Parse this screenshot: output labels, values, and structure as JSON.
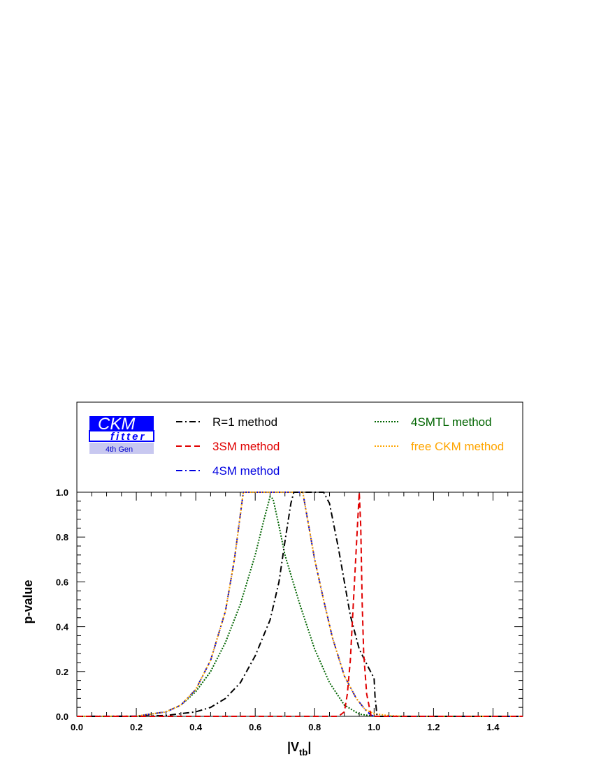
{
  "logo": {
    "main": "CKM",
    "sub": "fitter",
    "gen": "4th Gen"
  },
  "colors": {
    "r1": "#000000",
    "sm3": "#e00000",
    "sm4": "#0000e0",
    "tl4": "#006400",
    "free": "#ffa500",
    "logo_blue": "#0000ff",
    "logo_band": "#c8c8f0"
  },
  "chart_data": {
    "type": "line",
    "xlabel": "|V",
    "xlabel_sub": "tb",
    "xlabel_close": "|",
    "ylabel": "p-value",
    "xlim": [
      0.0,
      1.5
    ],
    "ylim": [
      0.0,
      1.0
    ],
    "x_ticks": [
      "0.0",
      "0.2",
      "0.4",
      "0.6",
      "0.8",
      "1.0",
      "1.2",
      "1.4"
    ],
    "y_ticks": [
      "0.0",
      "0.2",
      "0.4",
      "0.6",
      "0.8",
      "1.0"
    ],
    "grid": false,
    "legend_position": "top",
    "series": [
      {
        "name": "R=1 method",
        "color": "#000000",
        "dash": "dashdot",
        "points": [
          [
            0.0,
            0
          ],
          [
            0.2,
            0
          ],
          [
            0.3,
            0.004
          ],
          [
            0.4,
            0.02
          ],
          [
            0.45,
            0.04
          ],
          [
            0.5,
            0.08
          ],
          [
            0.55,
            0.15
          ],
          [
            0.6,
            0.27
          ],
          [
            0.65,
            0.43
          ],
          [
            0.68,
            0.6
          ],
          [
            0.7,
            0.78
          ],
          [
            0.72,
            0.95
          ],
          [
            0.73,
            1.0
          ],
          [
            0.83,
            1.0
          ],
          [
            0.85,
            0.95
          ],
          [
            0.88,
            0.75
          ],
          [
            0.9,
            0.6
          ],
          [
            0.92,
            0.45
          ],
          [
            0.95,
            0.3
          ],
          [
            0.98,
            0.22
          ],
          [
            1.0,
            0.17
          ],
          [
            1.003,
            0.09
          ],
          [
            1.01,
            0.0
          ],
          [
            1.5,
            0
          ]
        ]
      },
      {
        "name": "3SM method",
        "color": "#e00000",
        "dash": "dashed",
        "points": [
          [
            0.0,
            0
          ],
          [
            0.88,
            0
          ],
          [
            0.9,
            0.02
          ],
          [
            0.91,
            0.1
          ],
          [
            0.92,
            0.25
          ],
          [
            0.93,
            0.5
          ],
          [
            0.94,
            0.75
          ],
          [
            0.95,
            1.0
          ],
          [
            0.955,
            0.85
          ],
          [
            0.96,
            0.5
          ],
          [
            0.965,
            0.28
          ],
          [
            0.975,
            0.1
          ],
          [
            0.99,
            0.0
          ],
          [
            1.5,
            0
          ]
        ]
      },
      {
        "name": "4SM method",
        "color": "#0000e0",
        "dash": "dashdot",
        "points": [
          [
            0.0,
            0
          ],
          [
            0.2,
            0.001
          ],
          [
            0.3,
            0.02
          ],
          [
            0.35,
            0.05
          ],
          [
            0.4,
            0.12
          ],
          [
            0.45,
            0.25
          ],
          [
            0.5,
            0.47
          ],
          [
            0.53,
            0.7
          ],
          [
            0.55,
            0.9
          ],
          [
            0.56,
            1.0
          ],
          [
            0.76,
            1.0
          ],
          [
            0.78,
            0.85
          ],
          [
            0.8,
            0.7
          ],
          [
            0.83,
            0.52
          ],
          [
            0.86,
            0.35
          ],
          [
            0.9,
            0.18
          ],
          [
            0.94,
            0.08
          ],
          [
            0.97,
            0.03
          ],
          [
            0.99,
            0.005
          ],
          [
            1.0,
            0.0
          ],
          [
            1.5,
            0
          ]
        ]
      },
      {
        "name": "4SMTL method",
        "color": "#006400",
        "dash": "dotted",
        "points": [
          [
            0.0,
            0
          ],
          [
            0.2,
            0
          ],
          [
            0.3,
            0.02
          ],
          [
            0.35,
            0.05
          ],
          [
            0.4,
            0.11
          ],
          [
            0.45,
            0.2
          ],
          [
            0.5,
            0.33
          ],
          [
            0.55,
            0.5
          ],
          [
            0.6,
            0.72
          ],
          [
            0.63,
            0.88
          ],
          [
            0.65,
            0.98
          ],
          [
            0.66,
            0.97
          ],
          [
            0.68,
            0.85
          ],
          [
            0.7,
            0.72
          ],
          [
            0.75,
            0.5
          ],
          [
            0.8,
            0.3
          ],
          [
            0.85,
            0.15
          ],
          [
            0.9,
            0.05
          ],
          [
            0.95,
            0.01
          ],
          [
            1.0,
            0.0
          ],
          [
            1.5,
            0
          ]
        ]
      },
      {
        "name": "free CKM method",
        "color": "#ffa500",
        "dash": "dotted",
        "points": [
          [
            0.0,
            0
          ],
          [
            0.2,
            0.001
          ],
          [
            0.3,
            0.02
          ],
          [
            0.35,
            0.05
          ],
          [
            0.4,
            0.12
          ],
          [
            0.45,
            0.25
          ],
          [
            0.5,
            0.47
          ],
          [
            0.53,
            0.7
          ],
          [
            0.55,
            0.9
          ],
          [
            0.56,
            1.0
          ],
          [
            0.76,
            1.0
          ],
          [
            0.78,
            0.85
          ],
          [
            0.8,
            0.7
          ],
          [
            0.83,
            0.52
          ],
          [
            0.86,
            0.35
          ],
          [
            0.9,
            0.18
          ],
          [
            0.94,
            0.08
          ],
          [
            0.97,
            0.03
          ],
          [
            1.0,
            0.012
          ],
          [
            1.05,
            0.003
          ],
          [
            1.1,
            0.0
          ],
          [
            1.5,
            0
          ]
        ]
      }
    ]
  }
}
